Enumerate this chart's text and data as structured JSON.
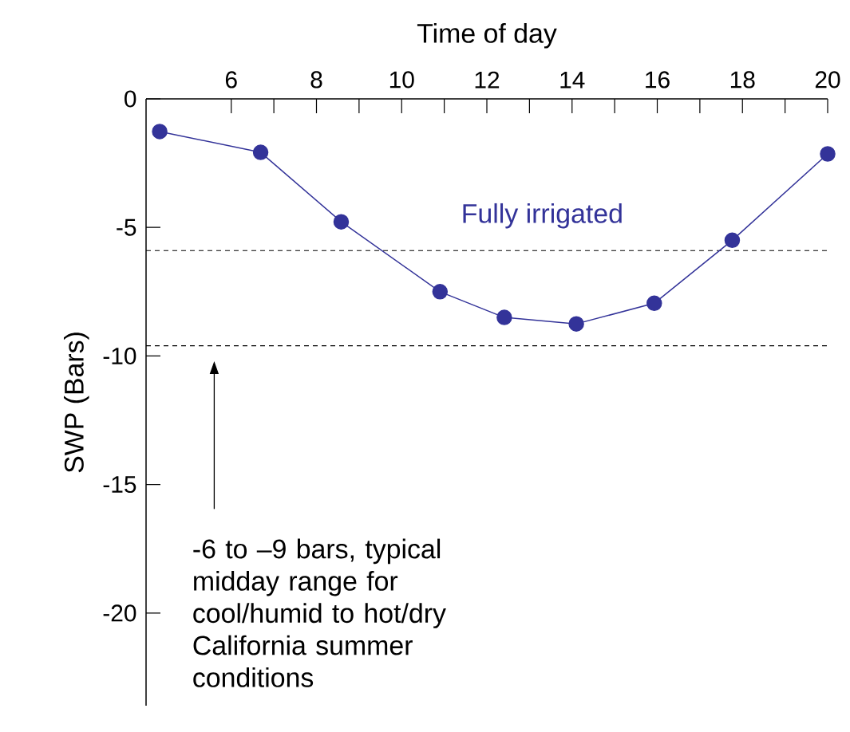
{
  "chart_data": {
    "type": "line",
    "xlabel": "Time of day",
    "ylabel": "SWP (Bars)",
    "x": [
      4.32,
      6.69,
      8.58,
      10.9,
      12.41,
      14.1,
      15.93,
      17.76,
      20
    ],
    "series": [
      {
        "name": "Fully irrigated",
        "color": "#333399",
        "values": [
          -1.27,
          -2.08,
          -4.78,
          -7.5,
          -8.5,
          -8.75,
          -7.95,
          -5.5,
          -2.14
        ]
      }
    ],
    "xlim": [
      4,
      20
    ],
    "xticks": [
      6,
      8,
      10,
      12,
      14,
      16,
      18,
      20
    ],
    "ylim": [
      -23.6,
      0
    ],
    "yticks": [
      -20,
      -15,
      -10,
      -5,
      0
    ],
    "ref_lines": [
      {
        "axis": "y",
        "value": -5.9,
        "color": "#000000",
        "line_style": "dashed"
      },
      {
        "axis": "y",
        "value": -9.6,
        "color": "#000000",
        "line_style": "dashed"
      }
    ],
    "annotations": [
      "-6 to –9 bars, typical midday range for cool/humid to hot/dry California summer conditions"
    ],
    "marker": "circle",
    "line_style": "solid",
    "grid": false,
    "legend": false
  }
}
